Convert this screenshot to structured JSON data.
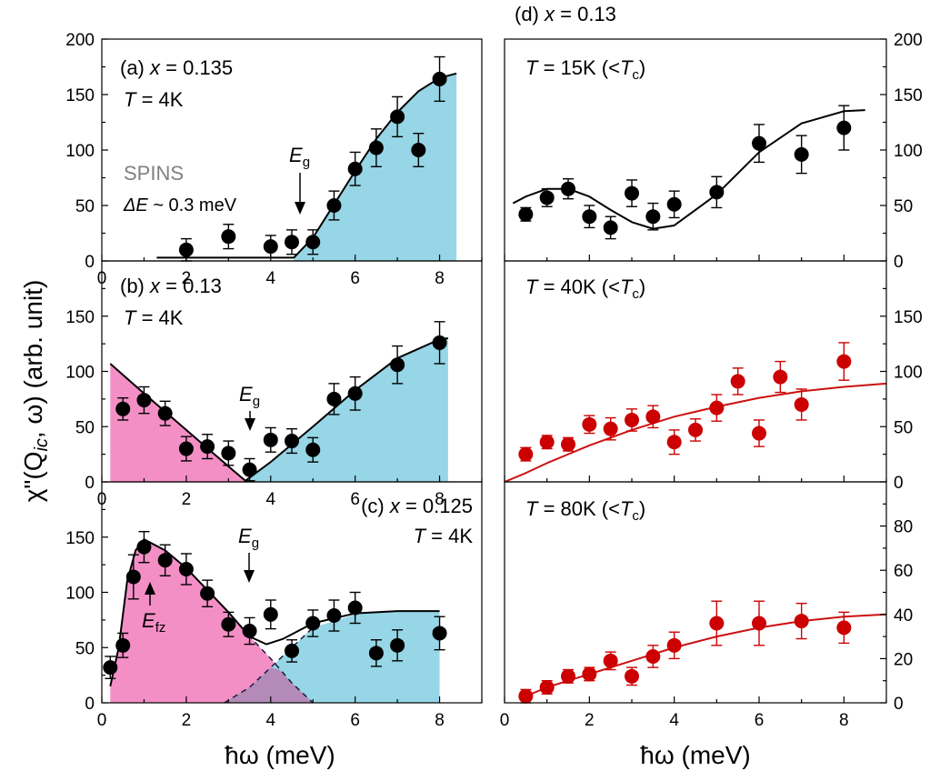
{
  "colors": {
    "black_points": "#000000",
    "red_points": "#cc0000",
    "red_line": "#cc1111",
    "pink_fill": "#f48fc6",
    "blue_fill": "#96d6e6",
    "overlap_fill": "#b48ab8",
    "spins_text": "#808080"
  },
  "axis_titles": {
    "y": "χ\"(Q",
    "y_sub": "ic",
    "y_rest": ", ω) (arb. unit)",
    "x_left": "ħω (meV)",
    "x_right": "ħω (meV)"
  },
  "annotations": {
    "a_label": "(a)",
    "a_x": "x",
    "a_val": " = 0.135",
    "a_T": "T",
    "a_Tval": " = 4K",
    "spins": "SPINS",
    "dE": "ΔE",
    "dE_val": " ~ 0.3 meV",
    "eg": "E",
    "eg_sub": "g",
    "b_label": "(b)",
    "b_x": "x",
    "b_val": " = 0.13",
    "b_T": "T",
    "b_Tval": " = 4K",
    "c_label": "(c)",
    "c_x": "x",
    "c_val": " = 0.125",
    "c_T": "T",
    "c_Tval": " = 4K",
    "efz": "E",
    "efz_sub": "fz",
    "d_label": "(d)",
    "d_x": "x",
    "d_val": " = 0.13",
    "d1_T": "T",
    "d1_rest": " = 15K (<",
    "d2_T": "T",
    "d2_rest": " = 40K (<",
    "d3_T": "T",
    "d3_rest": " = 80K (<",
    "tc": "T",
    "tc_sub": "c",
    "close": ")"
  },
  "chart_data": [
    {
      "type": "scatter",
      "panel": "(a) x = 0.135, T = 4K",
      "xlim": [
        0,
        9
      ],
      "ylim": [
        0,
        200
      ],
      "xticks": [
        "0",
        "2",
        "4",
        "6",
        "8"
      ],
      "yticks": [
        "0",
        "50",
        "100",
        "150",
        "200"
      ],
      "series": [
        {
          "x": [
            2.0,
            3.0,
            4.0,
            4.5,
            5.0,
            5.5,
            6.0,
            6.5,
            7.0,
            7.5,
            8.0
          ],
          "y": [
            10,
            22,
            13,
            17,
            17,
            50,
            83,
            102,
            130,
            100,
            164
          ],
          "err": [
            10,
            11,
            10,
            11,
            11,
            13,
            15,
            17,
            18,
            15,
            20
          ]
        }
      ],
      "fit_points": [
        [
          1.3,
          3
        ],
        [
          4.55,
          3
        ],
        [
          5.0,
          21
        ],
        [
          5.5,
          51
        ],
        [
          6.0,
          81
        ],
        [
          6.5,
          110
        ],
        [
          7.0,
          134
        ],
        [
          7.5,
          153
        ],
        [
          8.0,
          165
        ],
        [
          8.4,
          169
        ]
      ],
      "shaded_gapped_region": [
        4.55,
        8.4
      ],
      "gap_energy_meV": 4.5
    },
    {
      "type": "scatter",
      "panel": "(b) x = 0.13, T = 4K",
      "xlim": [
        0,
        9
      ],
      "ylim": [
        0,
        200
      ],
      "xticks": [
        "0",
        "2",
        "4",
        "6",
        "8"
      ],
      "yticks": [
        "0",
        "50",
        "100",
        "150"
      ],
      "series": [
        {
          "x": [
            0.5,
            1.0,
            1.5,
            2.0,
            2.5,
            3.0,
            3.5,
            4.0,
            4.5,
            5.0,
            5.5,
            6.0,
            7.0,
            8.0
          ],
          "y": [
            66,
            74,
            62,
            30,
            32,
            26,
            11,
            38,
            37,
            29,
            75,
            80,
            106,
            126
          ],
          "err": [
            10,
            12,
            11,
            11,
            11,
            11,
            10,
            11,
            11,
            11,
            14,
            15,
            17,
            19
          ]
        }
      ],
      "fit_points": [
        [
          0.2,
          107
        ],
        [
          1.0,
          80
        ],
        [
          2.0,
          47
        ],
        [
          3.0,
          14
        ],
        [
          3.4,
          1
        ],
        [
          4.0,
          18
        ],
        [
          5.0,
          50
        ],
        [
          6.0,
          83
        ],
        [
          7.0,
          112
        ],
        [
          8.0,
          129
        ],
        [
          8.2,
          130
        ]
      ],
      "pink_region": [
        0.2,
        3.4
      ],
      "blue_region": [
        3.4,
        8.2
      ],
      "gap_energy_meV": 3.5
    },
    {
      "type": "scatter",
      "panel": "(c) x = 0.125, T = 4K",
      "xlim": [
        0,
        9
      ],
      "ylim": [
        0,
        200
      ],
      "xticks": [
        "0",
        "2",
        "4",
        "6",
        "8"
      ],
      "yticks": [
        "0",
        "50",
        "100",
        "150"
      ],
      "series": [
        {
          "x": [
            0.2,
            0.5,
            0.75,
            1.0,
            1.5,
            2.0,
            2.5,
            3.0,
            3.5,
            4.0,
            4.5,
            5.0,
            5.5,
            6.0,
            6.5,
            7.0,
            8.0
          ],
          "y": [
            32,
            52,
            114,
            141,
            129,
            121,
            99,
            71,
            65,
            80,
            47,
            72,
            79,
            86,
            45,
            52,
            63
          ],
          "err": [
            10,
            11,
            20,
            14,
            14,
            14,
            12,
            11,
            12,
            13,
            10,
            12,
            14,
            14,
            12,
            14,
            15
          ]
        }
      ],
      "fit_points": [
        [
          0.2,
          15
        ],
        [
          0.4,
          50
        ],
        [
          0.6,
          110
        ],
        [
          0.8,
          138
        ],
        [
          1.0,
          148
        ],
        [
          1.5,
          138
        ],
        [
          2.0,
          122
        ],
        [
          2.5,
          102
        ],
        [
          3.0,
          82
        ],
        [
          3.5,
          60
        ],
        [
          3.9,
          53
        ],
        [
          4.3,
          58
        ],
        [
          5.0,
          72
        ],
        [
          6.0,
          81
        ],
        [
          7.0,
          83
        ],
        [
          8.0,
          83
        ]
      ],
      "pink_region": [
        0.2,
        5.0
      ],
      "blue_region": [
        2.9,
        8.0
      ],
      "efz_energy_meV": 1.0,
      "gap_energy_meV": 3.5
    },
    {
      "type": "scatter",
      "panel": "(d) x = 0.13, T = 15K (<Tc)",
      "xlim": [
        0,
        9
      ],
      "ylim": [
        0,
        200
      ],
      "xticks": [],
      "yticks": [
        "0",
        "50",
        "100",
        "150",
        "200"
      ],
      "series": [
        {
          "x": [
            0.5,
            1.0,
            1.5,
            2.0,
            2.5,
            3.0,
            3.5,
            4.0,
            5.0,
            6.0,
            7.0,
            8.0
          ],
          "y": [
            42,
            57,
            65,
            40,
            30,
            61,
            40,
            51,
            62,
            106,
            96,
            120
          ],
          "err": [
            6,
            8,
            9,
            10,
            10,
            12,
            12,
            12,
            14,
            17,
            17,
            20
          ]
        }
      ],
      "fit_points": [
        [
          0.2,
          52
        ],
        [
          0.5,
          58
        ],
        [
          1.0,
          65
        ],
        [
          1.5,
          65
        ],
        [
          2.0,
          58
        ],
        [
          2.5,
          46
        ],
        [
          3.0,
          35
        ],
        [
          3.5,
          29
        ],
        [
          4.0,
          32
        ],
        [
          5.0,
          60
        ],
        [
          6.0,
          98
        ],
        [
          7.0,
          124
        ],
        [
          8.0,
          135
        ],
        [
          8.5,
          136
        ]
      ]
    },
    {
      "type": "scatter",
      "panel": "T = 40K (<Tc)",
      "xlim": [
        0,
        9
      ],
      "ylim": [
        0,
        200
      ],
      "xticks": [],
      "yticks": [
        "0",
        "50",
        "100",
        "150"
      ],
      "series": [
        {
          "x": [
            0.5,
            1.0,
            1.5,
            2.0,
            2.5,
            3.0,
            3.5,
            4.0,
            4.5,
            5.0,
            5.5,
            6.0,
            6.5,
            7.0,
            8.0
          ],
          "y": [
            25,
            36,
            34,
            52,
            48,
            56,
            59,
            36,
            47,
            67,
            91,
            44,
            95,
            70,
            109
          ],
          "err": [
            6,
            6,
            6,
            8,
            10,
            10,
            10,
            11,
            10,
            12,
            12,
            12,
            14,
            14,
            17
          ]
        }
      ],
      "fit_points": [
        [
          0,
          0
        ],
        [
          0.5,
          8
        ],
        [
          1,
          17
        ],
        [
          1.5,
          25
        ],
        [
          2,
          33
        ],
        [
          2.5,
          40
        ],
        [
          3,
          47
        ],
        [
          3.5,
          53
        ],
        [
          4,
          59
        ],
        [
          5,
          68
        ],
        [
          6,
          76
        ],
        [
          7,
          82
        ],
        [
          8,
          86
        ],
        [
          9,
          89
        ]
      ]
    },
    {
      "type": "scatter",
      "panel": "T = 80K (<Tc)",
      "xlim": [
        0,
        9
      ],
      "ylim": [
        0,
        100
      ],
      "xticks": [
        "0",
        "2",
        "4",
        "6",
        "8"
      ],
      "yticks": [
        "0",
        "20",
        "40",
        "60",
        "80"
      ],
      "series": [
        {
          "x": [
            0.5,
            1.0,
            1.5,
            2.0,
            2.5,
            3.0,
            3.5,
            4.0,
            5.0,
            6.0,
            7.0,
            8.0
          ],
          "y": [
            3,
            7,
            12,
            13,
            19,
            12,
            21,
            26,
            36,
            36,
            37,
            34
          ],
          "err": [
            3,
            3,
            3,
            3,
            4,
            4,
            5,
            6,
            10,
            10,
            8,
            7
          ]
        }
      ],
      "fit_points": [
        [
          0.5,
          3
        ],
        [
          1,
          7
        ],
        [
          1.5,
          10
        ],
        [
          2,
          13
        ],
        [
          2.5,
          16
        ],
        [
          3,
          19
        ],
        [
          4,
          25
        ],
        [
          5,
          30
        ],
        [
          6,
          34
        ],
        [
          7,
          37
        ],
        [
          8,
          39
        ],
        [
          9,
          40
        ]
      ]
    }
  ]
}
